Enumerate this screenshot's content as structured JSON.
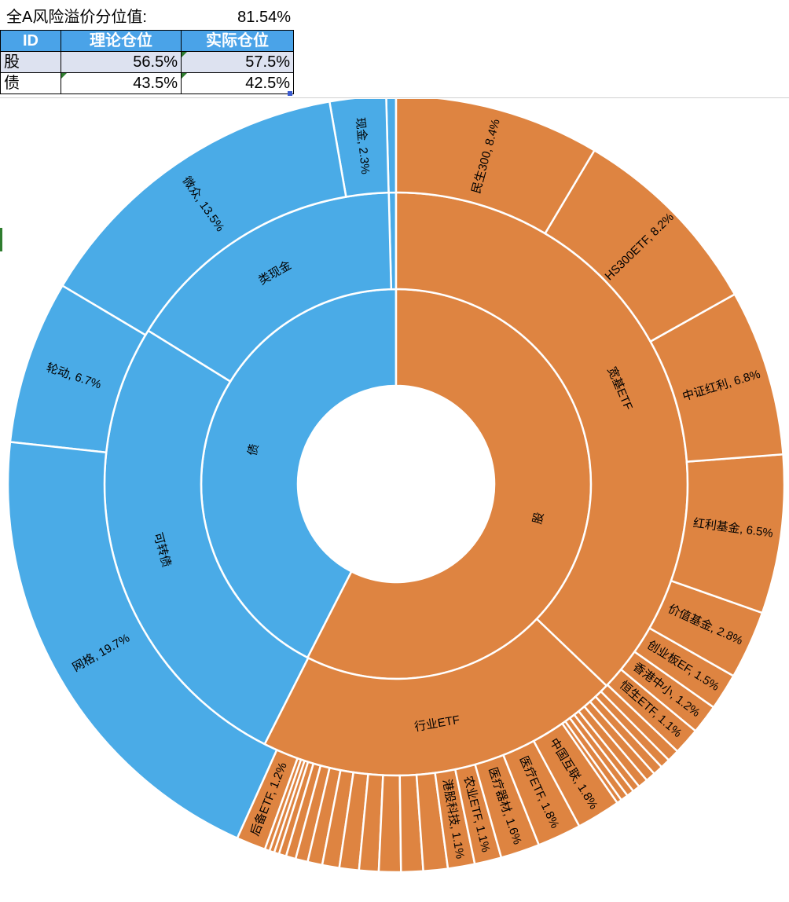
{
  "sheet": {
    "metric_label": "全A风险溢价分位值:",
    "metric_value": "81.54%",
    "columns": [
      "ID",
      "理论仓位",
      "实际仓位"
    ],
    "rows": [
      {
        "id": "股",
        "theory": "56.5%",
        "actual": "57.5%"
      },
      {
        "id": "债",
        "theory": "43.5%",
        "actual": "42.5%"
      }
    ]
  },
  "chart_data": {
    "type": "sunburst",
    "colors": {
      "债": "#4aabe7",
      "股": "#de8441",
      "border": "#ffffff"
    },
    "inner": [
      {
        "name": "债",
        "value": 42.5
      },
      {
        "name": "股",
        "value": 57.5
      }
    ],
    "middle": [
      {
        "name": "",
        "parent": "债",
        "value": 0.4
      },
      {
        "name": "类现金",
        "parent": "债",
        "value": 15.8
      },
      {
        "name": "可转债",
        "parent": "债",
        "value": 26.4
      },
      {
        "name": "行业ETF",
        "parent": "股",
        "value": 20.3
      },
      {
        "name": "宽基ETF",
        "parent": "股",
        "value": 37.2
      }
    ],
    "outer": [
      {
        "name": "",
        "parent": "债",
        "value": 0.4
      },
      {
        "name": "现金, 2.3%",
        "parent": "类现金",
        "value": 2.3
      },
      {
        "name": "微众, 13.5%",
        "parent": "类现金",
        "value": 13.5
      },
      {
        "name": "轮动, 6.7%",
        "parent": "可转债",
        "value": 6.7
      },
      {
        "name": "网格, 19.7%",
        "parent": "可转债",
        "value": 19.7
      },
      {
        "name": "后备ETF, 1.2%",
        "parent": "行业ETF",
        "value": 1.2
      },
      {
        "name": "",
        "parent": "行业ETF",
        "value": 0.2
      },
      {
        "name": "",
        "parent": "行业ETF",
        "value": 0.2
      },
      {
        "name": "",
        "parent": "行业ETF",
        "value": 0.2
      },
      {
        "name": "",
        "parent": "行业ETF",
        "value": 0.3
      },
      {
        "name": "",
        "parent": "行业ETF",
        "value": 0.4
      },
      {
        "name": "",
        "parent": "行业ETF",
        "value": 0.5
      },
      {
        "name": "",
        "parent": "行业ETF",
        "value": 0.6
      },
      {
        "name": "",
        "parent": "行业ETF",
        "value": 0.7
      },
      {
        "name": "",
        "parent": "行业ETF",
        "value": 0.8
      },
      {
        "name": "",
        "parent": "行业ETF",
        "value": 0.8
      },
      {
        "name": "",
        "parent": "行业ETF",
        "value": 0.9
      },
      {
        "name": "",
        "parent": "行业ETF",
        "value": 0.9
      },
      {
        "name": "",
        "parent": "行业ETF",
        "value": 1.0
      },
      {
        "name": "港股科技, 1.1%",
        "parent": "行业ETF",
        "value": 1.1
      },
      {
        "name": "农业ETF, 1.1%",
        "parent": "行业ETF",
        "value": 1.1
      },
      {
        "name": "医疗器材, 1.6%",
        "parent": "行业ETF",
        "value": 1.6
      },
      {
        "name": "医疗ETF, 1.8%",
        "parent": "行业ETF",
        "value": 1.8
      },
      {
        "name": "中国互联, 1.8%",
        "parent": "行业ETF",
        "value": 1.8
      },
      {
        "name": "",
        "parent": "行业ETF",
        "value": 0.2
      },
      {
        "name": "",
        "parent": "行业ETF",
        "value": 0.3
      },
      {
        "name": "",
        "parent": "行业ETF",
        "value": 0.3
      },
      {
        "name": "",
        "parent": "行业ETF",
        "value": 0.3
      },
      {
        "name": "",
        "parent": "行业ETF",
        "value": 0.4
      },
      {
        "name": "",
        "parent": "行业ETF",
        "value": 0.4
      },
      {
        "name": "",
        "parent": "行业ETF",
        "value": 0.4
      },
      {
        "name": "",
        "parent": "行业ETF",
        "value": 0.4
      },
      {
        "name": "",
        "parent": "行业ETF",
        "value": 0.5
      },
      {
        "name": "恒生ETF, 1.1%",
        "parent": "宽基ETF",
        "value": 1.1
      },
      {
        "name": "香港中小, 1.2%",
        "parent": "宽基ETF",
        "value": 1.2
      },
      {
        "name": "创业板EF, 1.5%",
        "parent": "宽基ETF",
        "value": 1.5
      },
      {
        "name": "价值基金, 2.8%",
        "parent": "宽基ETF",
        "value": 2.8
      },
      {
        "name": "红利基金, 6.5%",
        "parent": "宽基ETF",
        "value": 6.5
      },
      {
        "name": "中证红利, 6.8%",
        "parent": "宽基ETF",
        "value": 6.8
      },
      {
        "name": "HS300ETF, 8.2%",
        "parent": "宽基ETF",
        "value": 8.2
      },
      {
        "name": "民生300, 8.4%",
        "parent": "宽基ETF",
        "value": 8.4
      }
    ]
  }
}
